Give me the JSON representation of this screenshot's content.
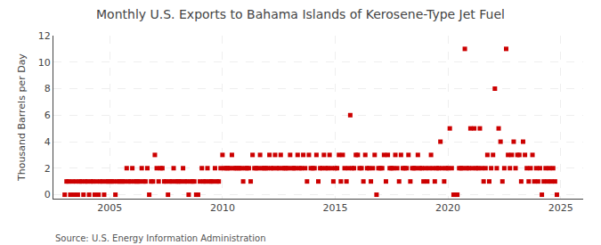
{
  "chart_data": {
    "type": "scatter",
    "title": "Monthly U.S. Exports to Bahama Islands of Kerosene-Type Jet Fuel",
    "y_label": "Thousand Barrels per Day",
    "annotations": [
      "Source: U.S. Energy Information Administration"
    ],
    "color": "#cc0000",
    "marker": "square",
    "grid": true,
    "xlim": [
      2002.5,
      2026.0
    ],
    "ylim": [
      -0.3,
      12
    ],
    "xticks": [
      2005,
      2010,
      2015,
      2020,
      2025
    ],
    "yticks": [
      0,
      2,
      4,
      6,
      8,
      10,
      12
    ],
    "x": [
      2003.0,
      2003.083,
      2003.167,
      2003.25,
      2003.333,
      2003.417,
      2003.5,
      2003.583,
      2003.667,
      2003.75,
      2003.833,
      2003.917,
      2004.0,
      2004.083,
      2004.167,
      2004.25,
      2004.333,
      2004.417,
      2004.5,
      2004.583,
      2004.667,
      2004.75,
      2004.833,
      2004.917,
      2005.0,
      2005.083,
      2005.167,
      2005.25,
      2005.333,
      2005.417,
      2005.5,
      2005.583,
      2005.667,
      2005.75,
      2005.833,
      2005.917,
      2006.0,
      2006.083,
      2006.167,
      2006.25,
      2006.333,
      2006.417,
      2006.5,
      2006.583,
      2006.667,
      2006.75,
      2006.833,
      2006.917,
      2007.0,
      2007.083,
      2007.167,
      2007.25,
      2007.333,
      2007.417,
      2007.5,
      2007.583,
      2007.667,
      2007.75,
      2007.833,
      2007.917,
      2008.0,
      2008.083,
      2008.167,
      2008.25,
      2008.333,
      2008.417,
      2008.5,
      2008.583,
      2008.667,
      2008.75,
      2008.833,
      2008.917,
      2009.0,
      2009.083,
      2009.167,
      2009.25,
      2009.333,
      2009.417,
      2009.5,
      2009.583,
      2009.667,
      2009.75,
      2009.833,
      2009.917,
      2010.0,
      2010.083,
      2010.167,
      2010.25,
      2010.333,
      2010.417,
      2010.5,
      2010.583,
      2010.667,
      2010.75,
      2010.833,
      2010.917,
      2011.0,
      2011.083,
      2011.167,
      2011.25,
      2011.333,
      2011.417,
      2011.5,
      2011.583,
      2011.667,
      2011.75,
      2011.833,
      2011.917,
      2012.0,
      2012.083,
      2012.167,
      2012.25,
      2012.333,
      2012.417,
      2012.5,
      2012.583,
      2012.667,
      2012.75,
      2012.833,
      2012.917,
      2013.0,
      2013.083,
      2013.167,
      2013.25,
      2013.333,
      2013.417,
      2013.5,
      2013.583,
      2013.667,
      2013.75,
      2013.833,
      2013.917,
      2014.0,
      2014.083,
      2014.167,
      2014.25,
      2014.333,
      2014.417,
      2014.5,
      2014.583,
      2014.667,
      2014.75,
      2014.833,
      2014.917,
      2015.0,
      2015.083,
      2015.167,
      2015.25,
      2015.333,
      2015.417,
      2015.5,
      2015.583,
      2015.667,
      2015.75,
      2015.833,
      2015.917,
      2016.0,
      2016.083,
      2016.167,
      2016.25,
      2016.333,
      2016.417,
      2016.5,
      2016.583,
      2016.667,
      2016.75,
      2016.833,
      2016.917,
      2017.0,
      2017.083,
      2017.167,
      2017.25,
      2017.333,
      2017.417,
      2017.5,
      2017.583,
      2017.667,
      2017.75,
      2017.833,
      2017.917,
      2018.0,
      2018.083,
      2018.167,
      2018.25,
      2018.333,
      2018.417,
      2018.5,
      2018.583,
      2018.667,
      2018.75,
      2018.833,
      2018.917,
      2019.0,
      2019.083,
      2019.167,
      2019.25,
      2019.333,
      2019.417,
      2019.5,
      2019.583,
      2019.667,
      2019.75,
      2019.833,
      2019.917,
      2020.0,
      2020.083,
      2020.167,
      2020.25,
      2020.333,
      2020.417,
      2020.5,
      2020.583,
      2020.667,
      2020.75,
      2020.833,
      2020.917,
      2021.0,
      2021.083,
      2021.167,
      2021.25,
      2021.333,
      2021.417,
      2021.5,
      2021.583,
      2021.667,
      2021.75,
      2021.833,
      2021.917,
      2022.0,
      2022.083,
      2022.167,
      2022.25,
      2022.333,
      2022.417,
      2022.5,
      2022.583,
      2022.667,
      2022.75,
      2022.833,
      2022.917,
      2023.0,
      2023.083,
      2023.167,
      2023.25,
      2023.333,
      2023.417,
      2023.5,
      2023.583,
      2023.667,
      2023.75,
      2023.833,
      2023.917,
      2024.0,
      2024.083,
      2024.167,
      2024.25,
      2024.333,
      2024.417,
      2024.5,
      2024.583,
      2024.667,
      2024.75,
      2024.833
    ],
    "values": [
      0,
      1,
      1,
      0,
      1,
      0,
      1,
      0,
      1,
      1,
      0,
      1,
      1,
      0,
      1,
      1,
      0,
      1,
      0,
      1,
      1,
      0,
      1,
      1,
      1,
      1,
      1,
      0,
      1,
      1,
      1,
      1,
      1,
      2,
      1,
      1,
      2,
      1,
      1,
      1,
      1,
      2,
      1,
      1,
      2,
      0,
      1,
      1,
      3,
      2,
      1,
      2,
      2,
      1,
      1,
      0,
      1,
      1,
      2,
      1,
      1,
      1,
      1,
      2,
      1,
      1,
      0,
      1,
      1,
      1,
      0,
      0,
      1,
      2,
      1,
      1,
      2,
      1,
      1,
      1,
      2,
      1,
      1,
      2,
      3,
      2,
      2,
      2,
      2,
      3,
      2,
      2,
      2,
      2,
      2,
      1,
      2,
      2,
      2,
      1,
      3,
      2,
      2,
      2,
      3,
      2,
      2,
      2,
      2,
      3,
      2,
      2,
      3,
      2,
      2,
      3,
      2,
      2,
      2,
      2,
      3,
      2,
      2,
      2,
      3,
      2,
      2,
      3,
      2,
      1,
      3,
      2,
      2,
      2,
      3,
      1,
      2,
      2,
      3,
      2,
      2,
      3,
      2,
      1,
      2,
      2,
      3,
      1,
      3,
      2,
      1,
      2,
      6,
      2,
      2,
      3,
      3,
      2,
      2,
      1,
      3,
      2,
      2,
      1,
      2,
      3,
      0,
      2,
      2,
      2,
      3,
      1,
      3,
      2,
      2,
      2,
      3,
      2,
      1,
      3,
      2,
      2,
      2,
      3,
      1,
      2,
      2,
      2,
      3,
      2,
      2,
      1,
      2,
      1,
      2,
      3,
      2,
      1,
      2,
      2,
      4,
      2,
      1,
      2,
      2,
      5,
      2,
      0,
      0,
      0,
      2,
      2,
      2,
      11,
      2,
      2,
      5,
      2,
      5,
      2,
      2,
      5,
      2,
      1,
      2,
      3,
      1,
      2,
      3,
      8,
      2,
      5,
      4,
      1,
      2,
      11,
      3,
      2,
      3,
      4,
      2,
      3,
      3,
      1,
      4,
      3,
      2,
      1,
      2,
      3,
      1,
      2,
      1,
      2,
      0,
      1,
      2,
      1,
      2,
      1,
      2,
      1,
      0
    ]
  }
}
